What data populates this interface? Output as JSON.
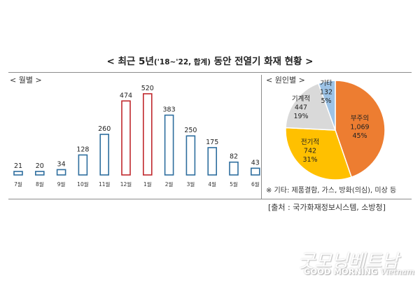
{
  "title": {
    "prefix": "< 최근 5년",
    "range": "('18~'22, 합계)",
    "suffix": " 동안 전열기 화재 현황 >"
  },
  "monthly_label": "< 월별 >",
  "cause_label": "< 원인별 >",
  "note": "※ 기타: 제품결함, 가스, 방화(의심), 미상 등",
  "source": "[출처 : 국가화재정보시스템, 소방청]",
  "watermark": {
    "korean": "굿모닝베트남",
    "english_bold": "GOOD MORNING",
    "english_script": "Vietnam"
  },
  "colors": {
    "bar_normal": "#2e6e9e",
    "bar_highlight": "#c0282d",
    "pie_careless": "#ed7d31",
    "pie_electrical": "#ffc000",
    "pie_mechanical": "#d9d9d9",
    "pie_other": "#9dc3e6"
  },
  "chart_data": [
    {
      "type": "bar",
      "title": "< 월별 >",
      "categories": [
        "7월",
        "8월",
        "9월",
        "10월",
        "11월",
        "12월",
        "1월",
        "2월",
        "3월",
        "4월",
        "5월",
        "6월"
      ],
      "values": [
        21,
        20,
        34,
        128,
        260,
        474,
        520,
        383,
        250,
        175,
        82,
        43
      ],
      "highlight": [
        "12월",
        "1월"
      ],
      "style": "outlined",
      "ylim": [
        0,
        520
      ],
      "grid": false,
      "legend": "none"
    },
    {
      "type": "pie",
      "title": "< 원인별 >",
      "slices": [
        {
          "label": "부주의",
          "count": "1,069",
          "percent": "45%",
          "value": 1069,
          "color": "#ed7d31"
        },
        {
          "label": "전기적",
          "count": "742",
          "percent": "31%",
          "value": 742,
          "color": "#ffc000"
        },
        {
          "label": "기계적",
          "count": "447",
          "percent": "19%",
          "value": 447,
          "color": "#d9d9d9"
        },
        {
          "label": "기타",
          "count": "132",
          "percent": "5%",
          "value": 132,
          "color": "#9dc3e6"
        }
      ],
      "legend": "none"
    }
  ]
}
